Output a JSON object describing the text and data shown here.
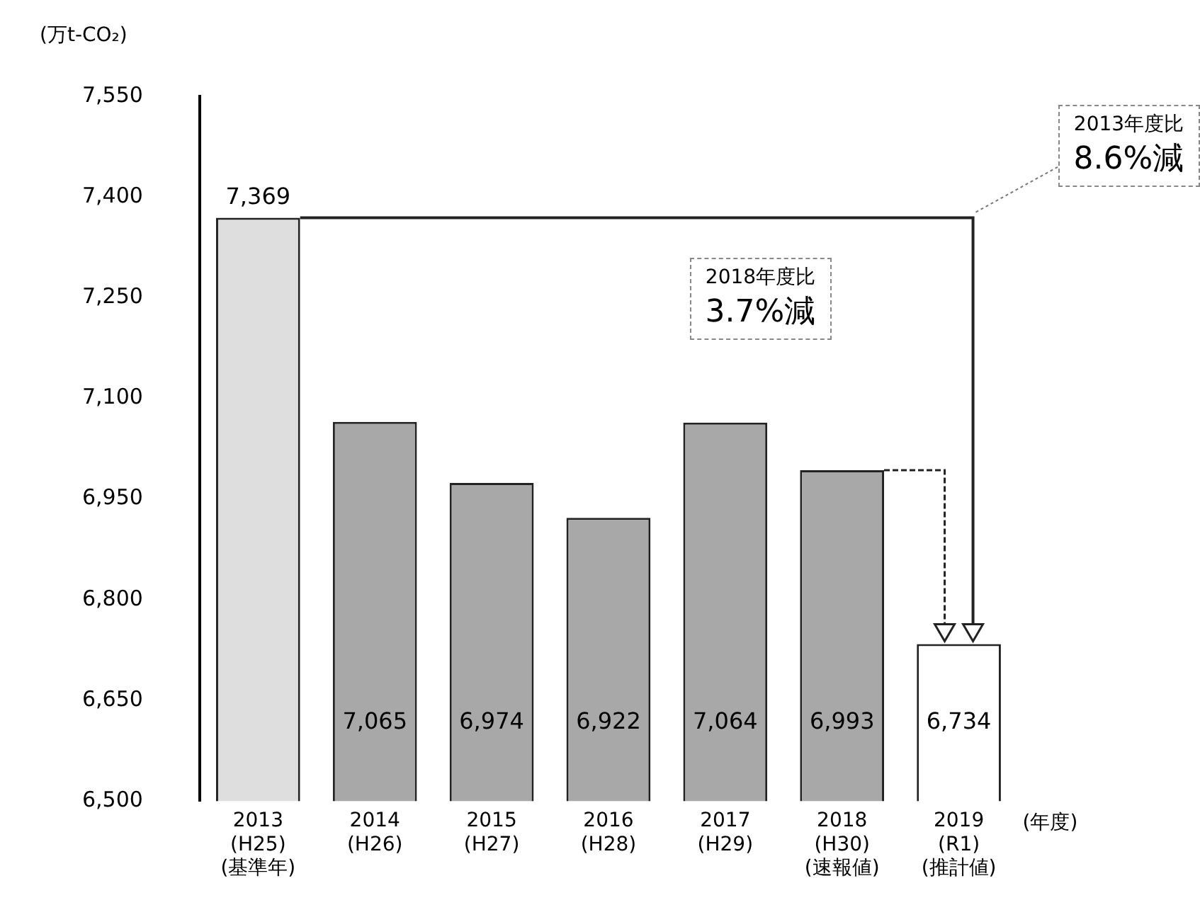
{
  "chart_data": {
    "type": "bar",
    "ylabel": "(万t-CO₂)",
    "xlabel": "(年度)",
    "categories": [
      "2013\n(H25)\n(基準年)",
      "2014\n(H26)",
      "2015\n(H27)",
      "2016\n(H28)",
      "2017\n(H29)",
      "2018\n(H30)\n(速報値)",
      "2019\n(R1)\n(推計値)"
    ],
    "values": [
      7369,
      7065,
      6974,
      6922,
      7064,
      6993,
      6734
    ],
    "value_labels": [
      "7,369",
      "7,065",
      "6,974",
      "6,922",
      "7,064",
      "6,993",
      "6,734"
    ],
    "colors": [
      "#dedede",
      "#a8a8a8",
      "#a8a8a8",
      "#a8a8a8",
      "#a8a8a8",
      "#a8a8a8",
      "#ffffff"
    ],
    "ylim": [
      6500,
      7550
    ],
    "yticks": [
      {
        "value": 6500,
        "label": "6,500"
      },
      {
        "value": 6650,
        "label": "6,650"
      },
      {
        "value": 6800,
        "label": "6,800"
      },
      {
        "value": 6950,
        "label": "6,950"
      },
      {
        "value": 7100,
        "label": "7,100"
      },
      {
        "value": 7250,
        "label": "7,250"
      },
      {
        "value": 7400,
        "label": "7,400"
      },
      {
        "value": 7550,
        "label": "7,550"
      }
    ],
    "annotations": [
      "2013年度比\n8.6%減",
      "2018年度比\n3.7%減"
    ],
    "grid": false,
    "legend": false
  }
}
